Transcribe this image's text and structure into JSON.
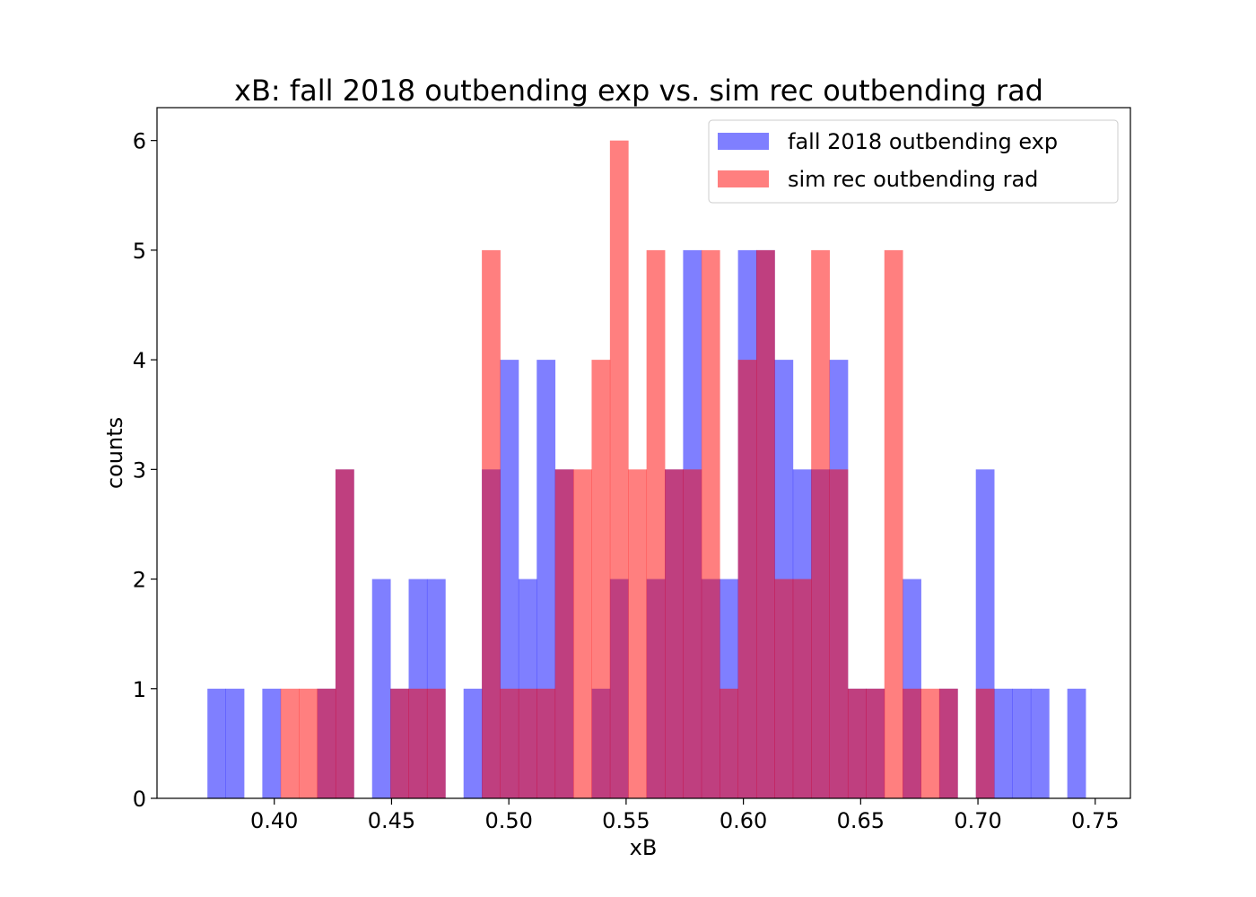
{
  "chart_data": {
    "type": "bar",
    "title": "xB: fall 2018 outbending exp  vs. sim rec outbending rad",
    "xlabel": "xB",
    "ylabel": "counts",
    "xlim": [
      0.35,
      0.765
    ],
    "ylim": [
      0,
      6.3
    ],
    "xticks": [
      "0.40",
      "0.45",
      "0.50",
      "0.55",
      "0.60",
      "0.65",
      "0.70",
      "0.75"
    ],
    "yticks": [
      "0",
      "1",
      "2",
      "3",
      "4",
      "5",
      "6"
    ],
    "legend_position": "top-right",
    "grid": false,
    "series": [
      {
        "name": "fall 2018 outbending exp",
        "color": "#0000ff",
        "opacity": 0.5,
        "bins": [
          [
            0.3715,
            0.3793,
            1
          ],
          [
            0.3793,
            0.3871,
            1
          ],
          [
            0.3949,
            0.4027,
            1
          ],
          [
            0.4183,
            0.4261,
            1
          ],
          [
            0.4261,
            0.4339,
            3
          ],
          [
            0.4417,
            0.4495,
            2
          ],
          [
            0.4495,
            0.4573,
            1
          ],
          [
            0.4573,
            0.4651,
            2
          ],
          [
            0.4651,
            0.4729,
            2
          ],
          [
            0.4807,
            0.4885,
            1
          ],
          [
            0.4885,
            0.4963,
            3
          ],
          [
            0.4963,
            0.5041,
            4
          ],
          [
            0.5041,
            0.5119,
            2
          ],
          [
            0.5119,
            0.5197,
            4
          ],
          [
            0.5197,
            0.5275,
            3
          ],
          [
            0.5353,
            0.5431,
            1
          ],
          [
            0.5431,
            0.5509,
            2
          ],
          [
            0.5587,
            0.5665,
            2
          ],
          [
            0.5665,
            0.5743,
            3
          ],
          [
            0.5743,
            0.5821,
            5
          ],
          [
            0.5821,
            0.5899,
            2
          ],
          [
            0.5899,
            0.5977,
            2
          ],
          [
            0.5977,
            0.6055,
            5
          ],
          [
            0.6055,
            0.6133,
            5
          ],
          [
            0.6133,
            0.6211,
            4
          ],
          [
            0.6211,
            0.6289,
            3
          ],
          [
            0.6289,
            0.6367,
            3
          ],
          [
            0.6367,
            0.6445,
            4
          ],
          [
            0.6445,
            0.6523,
            1
          ],
          [
            0.6523,
            0.6601,
            1
          ],
          [
            0.6679,
            0.6757,
            2
          ],
          [
            0.6835,
            0.6913,
            1
          ],
          [
            0.6991,
            0.7069,
            3
          ],
          [
            0.7069,
            0.7147,
            1
          ],
          [
            0.7147,
            0.7225,
            1
          ],
          [
            0.7225,
            0.7303,
            1
          ],
          [
            0.7381,
            0.7459,
            1
          ]
        ]
      },
      {
        "name": "sim rec outbending rad",
        "color": "#ff0000",
        "opacity": 0.5,
        "bins": [
          [
            0.4027,
            0.4105,
            1
          ],
          [
            0.4105,
            0.4183,
            1
          ],
          [
            0.4183,
            0.4261,
            1
          ],
          [
            0.4261,
            0.4339,
            3
          ],
          [
            0.4495,
            0.4573,
            1
          ],
          [
            0.4573,
            0.4651,
            1
          ],
          [
            0.4651,
            0.4729,
            1
          ],
          [
            0.4885,
            0.4963,
            5
          ],
          [
            0.4963,
            0.5041,
            1
          ],
          [
            0.5041,
            0.5119,
            1
          ],
          [
            0.5119,
            0.5197,
            1
          ],
          [
            0.5197,
            0.5275,
            3
          ],
          [
            0.5275,
            0.5353,
            3
          ],
          [
            0.5353,
            0.5431,
            4
          ],
          [
            0.5431,
            0.5509,
            6
          ],
          [
            0.5509,
            0.5587,
            3
          ],
          [
            0.5587,
            0.5665,
            5
          ],
          [
            0.5665,
            0.5743,
            3
          ],
          [
            0.5743,
            0.5821,
            3
          ],
          [
            0.5821,
            0.5899,
            5
          ],
          [
            0.5899,
            0.5977,
            1
          ],
          [
            0.5977,
            0.6055,
            4
          ],
          [
            0.6055,
            0.6133,
            5
          ],
          [
            0.6133,
            0.6211,
            2
          ],
          [
            0.6211,
            0.6289,
            2
          ],
          [
            0.6289,
            0.6367,
            5
          ],
          [
            0.6367,
            0.6445,
            3
          ],
          [
            0.6445,
            0.6523,
            1
          ],
          [
            0.6523,
            0.6601,
            1
          ],
          [
            0.6601,
            0.6679,
            5
          ],
          [
            0.6679,
            0.6757,
            1
          ],
          [
            0.6757,
            0.6835,
            1
          ],
          [
            0.6835,
            0.6913,
            1
          ],
          [
            0.6991,
            0.7069,
            1
          ]
        ]
      }
    ]
  }
}
